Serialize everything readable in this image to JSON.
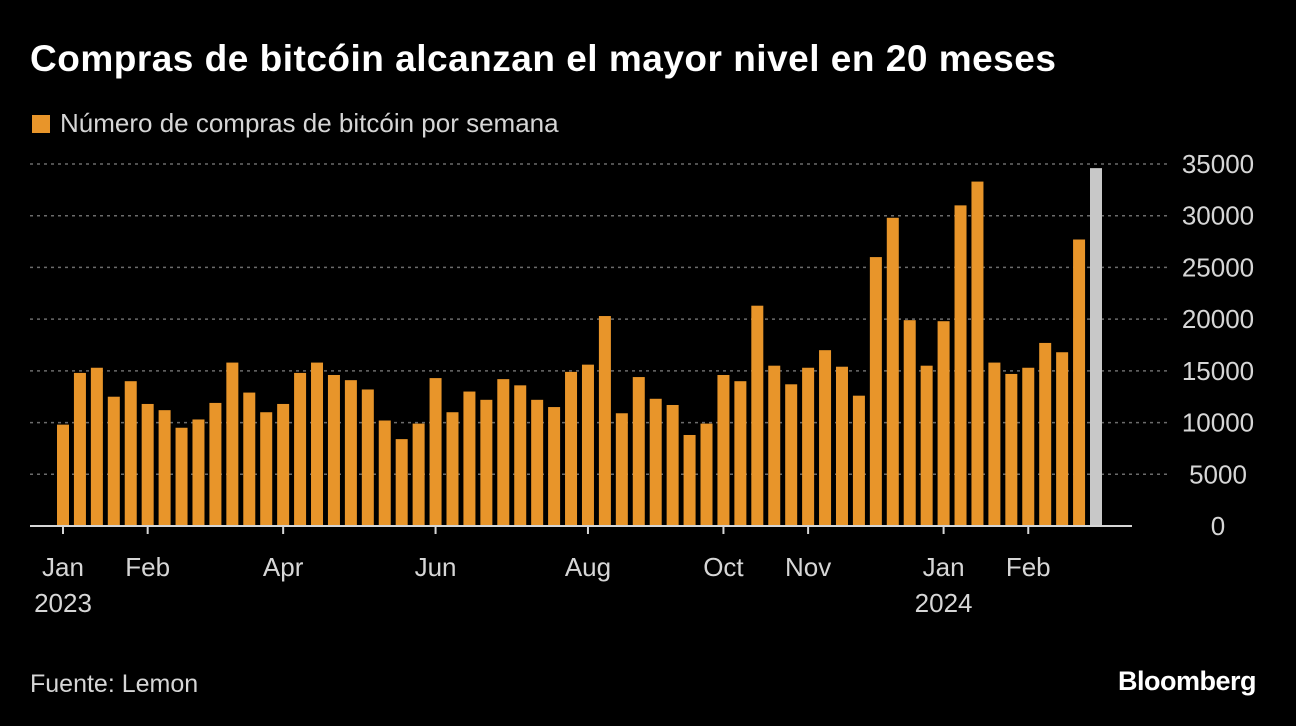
{
  "title": "Compras de bitcóin alcanzan el mayor nivel en 20 meses",
  "source": "Fuente: Lemon",
  "brand": "Bloomberg",
  "colors": {
    "bar": "#e8952a",
    "bar_highlight": "#c8c8c8",
    "grid": "#6b6b6b",
    "axis": "#d6d6d6",
    "background": "#000000"
  },
  "chart_data": {
    "type": "bar",
    "series": [
      {
        "name": "Número de compras de bitcóin por semana",
        "values": [
          9800,
          14800,
          15300,
          12500,
          14000,
          11800,
          11200,
          9500,
          10300,
          11900,
          15800,
          12900,
          11000,
          11800,
          14800,
          15800,
          14600,
          14100,
          13200,
          10200,
          8400,
          9900,
          14300,
          11000,
          13000,
          12200,
          14200,
          13600,
          12200,
          11500,
          14900,
          15600,
          20300,
          10900,
          14400,
          12300,
          11700,
          8800,
          9900,
          14600,
          14000,
          21300,
          15500,
          13700,
          15300,
          17000,
          15400,
          12600,
          26000,
          29800,
          19900,
          15500,
          19800,
          31000,
          33300,
          15800,
          14700,
          15300,
          17700,
          16800,
          27700,
          34600
        ]
      }
    ],
    "highlight_last": true,
    "ylim": [
      0,
      35000
    ],
    "yticks": [
      "35000",
      "30000",
      "25000",
      "20000",
      "15000",
      "10000",
      "5000",
      "0"
    ],
    "ytick_values": [
      35000,
      30000,
      25000,
      20000,
      15000,
      10000,
      5000,
      0
    ],
    "xticks": [
      {
        "label": "Jan",
        "year": "2023",
        "index": 0
      },
      {
        "label": "Feb",
        "year": "",
        "index": 5
      },
      {
        "label": "Apr",
        "year": "",
        "index": 13
      },
      {
        "label": "Jun",
        "year": "",
        "index": 22
      },
      {
        "label": "Aug",
        "year": "",
        "index": 31
      },
      {
        "label": "Oct",
        "year": "",
        "index": 39
      },
      {
        "label": "Nov",
        "year": "",
        "index": 44
      },
      {
        "label": "Jan",
        "year": "2024",
        "index": 52
      },
      {
        "label": "Feb",
        "year": "",
        "index": 57
      }
    ],
    "grid": true,
    "yaxis_position": "right",
    "legend_position": "top-left"
  }
}
